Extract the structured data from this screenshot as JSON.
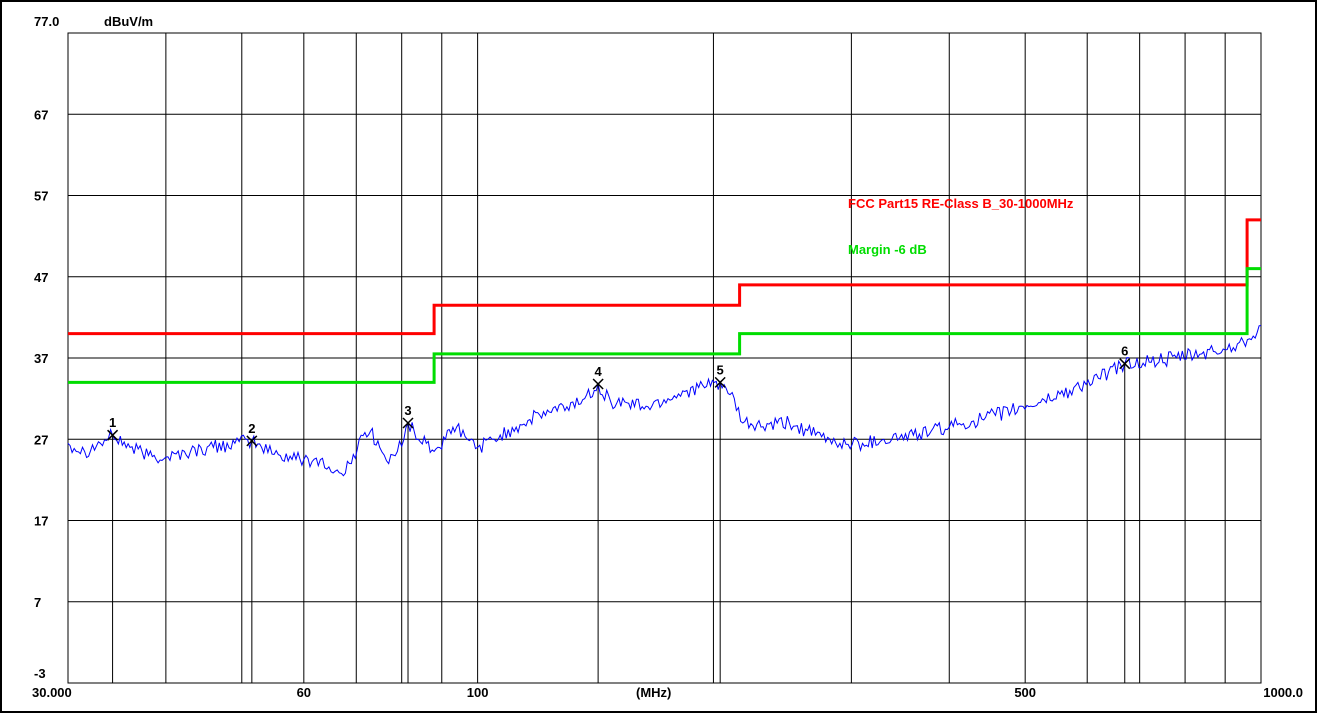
{
  "chart_data": {
    "type": "line",
    "ylabel": "dBuV/m",
    "xlabel": "(MHz)",
    "x_scale": "log",
    "xlim": [
      30,
      1000
    ],
    "ylim": [
      -3,
      77
    ],
    "y_ticks": [
      {
        "value": 77,
        "label": "77.0"
      },
      {
        "value": 67,
        "label": "67"
      },
      {
        "value": 57,
        "label": "57"
      },
      {
        "value": 47,
        "label": "47"
      },
      {
        "value": 37,
        "label": "37"
      },
      {
        "value": 27,
        "label": "27"
      },
      {
        "value": 17,
        "label": "17"
      },
      {
        "value": 7,
        "label": "7"
      },
      {
        "value": -3,
        "label": "-3"
      }
    ],
    "x_ticks": [
      {
        "value": 30,
        "label": "30.000"
      },
      {
        "value": 60,
        "label": "60"
      },
      {
        "value": 100,
        "label": "100"
      },
      {
        "value": 500,
        "label": "500"
      },
      {
        "value": 1000,
        "label": "1000.0"
      }
    ],
    "x_gridlines": [
      40,
      50,
      60,
      70,
      80,
      90,
      100,
      200,
      300,
      400,
      500,
      600,
      700,
      800,
      900
    ],
    "grid": true,
    "legend_placement": "upper-right inside plot",
    "series": [
      {
        "name": "FCC Part15 RE-Class B_30-1000MHz",
        "color": "#ff0000",
        "points": [
          [
            30,
            40
          ],
          [
            88,
            40
          ],
          [
            88,
            43.5
          ],
          [
            216,
            43.5
          ],
          [
            216,
            46
          ],
          [
            960,
            46
          ],
          [
            960,
            54
          ],
          [
            1000,
            54
          ]
        ]
      },
      {
        "name": "Margin -6 dB",
        "color": "#00dd00",
        "points": [
          [
            30,
            34
          ],
          [
            88,
            34
          ],
          [
            88,
            37.5
          ],
          [
            216,
            37.5
          ],
          [
            216,
            40
          ],
          [
            960,
            40
          ],
          [
            960,
            48
          ],
          [
            1000,
            48
          ]
        ]
      },
      {
        "color": "#0000ff",
        "points": [
          [
            30,
            26.5
          ],
          [
            31.5,
            25.5
          ],
          [
            33,
            26.5
          ],
          [
            34.2,
            27.5
          ],
          [
            36,
            26
          ],
          [
            38,
            25
          ],
          [
            40,
            24.8
          ],
          [
            43,
            25.5
          ],
          [
            46,
            26
          ],
          [
            49,
            26.5
          ],
          [
            51.5,
            26.8
          ],
          [
            53,
            26
          ],
          [
            56,
            25
          ],
          [
            60,
            24.5
          ],
          [
            63,
            24.5
          ],
          [
            65,
            23
          ],
          [
            67,
            22.8
          ],
          [
            69,
            24
          ],
          [
            71,
            27.5
          ],
          [
            73,
            28
          ],
          [
            75,
            26
          ],
          [
            77,
            24
          ],
          [
            79,
            25.5
          ],
          [
            81.5,
            29
          ],
          [
            84,
            27
          ],
          [
            86,
            26.5
          ],
          [
            88,
            25.5
          ],
          [
            91,
            27
          ],
          [
            94,
            28.5
          ],
          [
            97,
            27
          ],
          [
            100,
            26
          ],
          [
            105,
            27
          ],
          [
            112,
            28.5
          ],
          [
            120,
            30
          ],
          [
            130,
            31
          ],
          [
            137,
            32
          ],
          [
            142.5,
            33.8
          ],
          [
            148,
            31.5
          ],
          [
            155,
            31.5
          ],
          [
            165,
            31
          ],
          [
            175,
            32
          ],
          [
            185,
            33
          ],
          [
            196,
            33.5
          ],
          [
            204,
            34
          ],
          [
            210,
            32.5
          ],
          [
            218,
            29
          ],
          [
            230,
            28.5
          ],
          [
            250,
            29
          ],
          [
            270,
            27.5
          ],
          [
            290,
            26.5
          ],
          [
            310,
            26.5
          ],
          [
            330,
            27
          ],
          [
            360,
            27.5
          ],
          [
            400,
            28.5
          ],
          [
            440,
            29.5
          ],
          [
            480,
            30.5
          ],
          [
            520,
            31.5
          ],
          [
            570,
            33
          ],
          [
            620,
            34.5
          ],
          [
            670,
            36.3
          ],
          [
            720,
            36.5
          ],
          [
            780,
            37
          ],
          [
            840,
            37.5
          ],
          [
            900,
            38
          ],
          [
            950,
            39
          ],
          [
            1000,
            41
          ]
        ]
      }
    ],
    "markers": [
      {
        "label": "1",
        "freq": 34.2,
        "level": 27.5
      },
      {
        "label": "2",
        "freq": 51.5,
        "level": 26.8
      },
      {
        "label": "3",
        "freq": 81.5,
        "level": 29.0
      },
      {
        "label": "4",
        "freq": 142.5,
        "level": 33.8
      },
      {
        "label": "5",
        "freq": 204.0,
        "level": 34.0
      },
      {
        "label": "6",
        "freq": 670.0,
        "level": 36.3
      }
    ]
  }
}
